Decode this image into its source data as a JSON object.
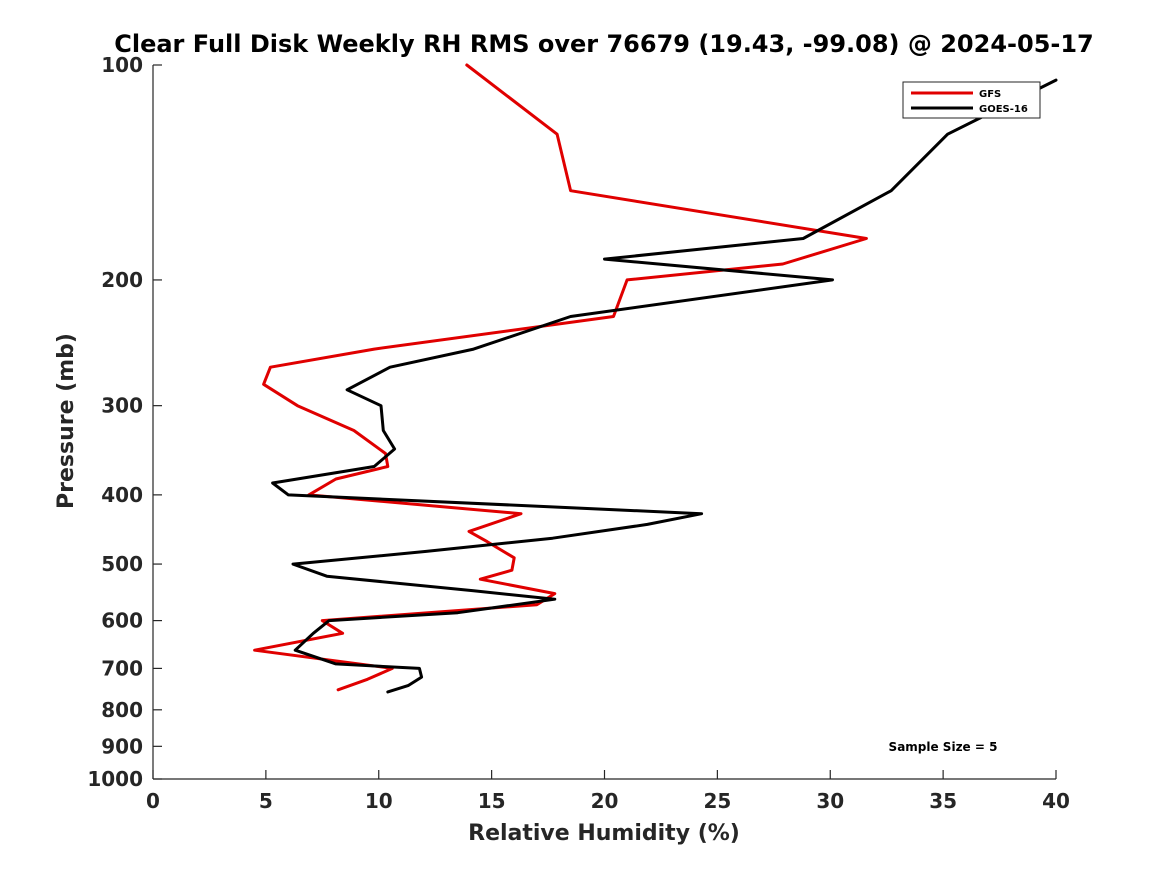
{
  "chart_data": {
    "type": "line",
    "title": "Clear Full Disk Weekly RH RMS over 76679 (19.43, -99.08) @ 2024-05-17",
    "xlabel": "Relative Humidity (%)",
    "ylabel": "Pressure (mb)",
    "xlim": [
      0,
      40
    ],
    "ylim": [
      100,
      1000
    ],
    "yscale": "log",
    "y_reversed": true,
    "xticks": [
      0,
      5,
      10,
      15,
      20,
      25,
      30,
      35,
      40
    ],
    "yticks": [
      100,
      200,
      300,
      400,
      500,
      600,
      700,
      800,
      900,
      1000
    ],
    "grid": false,
    "legend_position": "top-right",
    "annotation": "Sample Size = 5",
    "series": [
      {
        "name": "GFS",
        "color": "#e00000",
        "points": [
          [
            13.9,
            100
          ],
          [
            17.9,
            125
          ],
          [
            18.5,
            150
          ],
          [
            31.6,
            175
          ],
          [
            27.9,
            190
          ],
          [
            21.0,
            200
          ],
          [
            20.4,
            225
          ],
          [
            9.8,
            250
          ],
          [
            5.2,
            265
          ],
          [
            4.9,
            280
          ],
          [
            6.4,
            300
          ],
          [
            8.9,
            325
          ],
          [
            10.3,
            350
          ],
          [
            10.4,
            365
          ],
          [
            8.1,
            380
          ],
          [
            6.9,
            400
          ],
          [
            16.3,
            425
          ],
          [
            14.0,
            450
          ],
          [
            14.8,
            465
          ],
          [
            16.0,
            490
          ],
          [
            15.9,
            510
          ],
          [
            14.5,
            525
          ],
          [
            17.8,
            550
          ],
          [
            17.0,
            570
          ],
          [
            7.5,
            600
          ],
          [
            8.4,
            625
          ],
          [
            4.5,
            660
          ],
          [
            10.6,
            700
          ],
          [
            9.5,
            725
          ],
          [
            8.2,
            750
          ]
        ]
      },
      {
        "name": "GOES-16",
        "color": "#000000",
        "points": [
          [
            40.0,
            105
          ],
          [
            35.2,
            125
          ],
          [
            32.7,
            150
          ],
          [
            28.8,
            175
          ],
          [
            20.0,
            187
          ],
          [
            30.1,
            200
          ],
          [
            18.5,
            225
          ],
          [
            14.2,
            250
          ],
          [
            10.5,
            265
          ],
          [
            8.6,
            285
          ],
          [
            10.1,
            300
          ],
          [
            10.2,
            325
          ],
          [
            10.7,
            345
          ],
          [
            9.8,
            365
          ],
          [
            5.3,
            385
          ],
          [
            6.0,
            400
          ],
          [
            24.3,
            425
          ],
          [
            21.9,
            440
          ],
          [
            17.7,
            460
          ],
          [
            12.1,
            480
          ],
          [
            6.2,
            500
          ],
          [
            7.7,
            520
          ],
          [
            14.2,
            545
          ],
          [
            17.8,
            560
          ],
          [
            13.5,
            585
          ],
          [
            7.8,
            600
          ],
          [
            7.1,
            625
          ],
          [
            6.3,
            660
          ],
          [
            8.1,
            690
          ],
          [
            11.8,
            700
          ],
          [
            11.9,
            720
          ],
          [
            11.3,
            740
          ],
          [
            10.4,
            755
          ]
        ]
      }
    ]
  }
}
